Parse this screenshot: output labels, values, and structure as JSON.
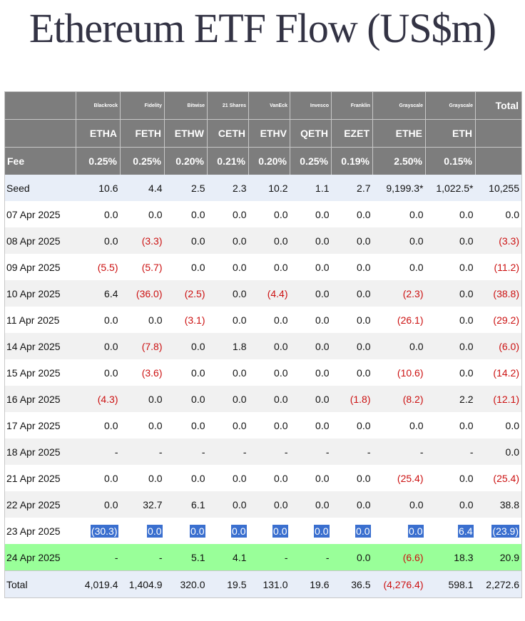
{
  "title": "Ethereum ETF Flow (US$m)",
  "header": {
    "issuers": [
      "Blackrock",
      "Fidelity",
      "Bitwise",
      "21 Shares",
      "VanEck",
      "Invesco",
      "Franklin",
      "Grayscale",
      "Grayscale"
    ],
    "total_label": "Total",
    "tickers": [
      "ETHA",
      "FETH",
      "ETHW",
      "CETH",
      "ETHV",
      "QETH",
      "EZET",
      "ETHE",
      "ETH"
    ],
    "fee_label": "Fee",
    "fees": [
      "0.25%",
      "0.25%",
      "0.20%",
      "0.21%",
      "0.20%",
      "0.25%",
      "0.19%",
      "2.50%",
      "0.15%"
    ]
  },
  "rows": [
    {
      "date": "Seed",
      "style": "seed",
      "values": [
        "10.6",
        "4.4",
        "2.5",
        "2.3",
        "10.2",
        "1.1",
        "2.7",
        "9,199.3*",
        "1,022.5*"
      ],
      "total": "10,255"
    },
    {
      "date": "07 Apr 2025",
      "style": "white",
      "values": [
        "0.0",
        "0.0",
        "0.0",
        "0.0",
        "0.0",
        "0.0",
        "0.0",
        "0.0",
        "0.0"
      ],
      "total": "0.0"
    },
    {
      "date": "08 Apr 2025",
      "style": "grey",
      "values": [
        "0.0",
        "(3.3)",
        "0.0",
        "0.0",
        "0.0",
        "0.0",
        "0.0",
        "0.0",
        "0.0"
      ],
      "total": "(3.3)"
    },
    {
      "date": "09 Apr 2025",
      "style": "white",
      "values": [
        "(5.5)",
        "(5.7)",
        "0.0",
        "0.0",
        "0.0",
        "0.0",
        "0.0",
        "0.0",
        "0.0"
      ],
      "total": "(11.2)"
    },
    {
      "date": "10 Apr 2025",
      "style": "grey",
      "values": [
        "6.4",
        "(36.0)",
        "(2.5)",
        "0.0",
        "(4.4)",
        "0.0",
        "0.0",
        "(2.3)",
        "0.0"
      ],
      "total": "(38.8)"
    },
    {
      "date": "11 Apr 2025",
      "style": "white",
      "values": [
        "0.0",
        "0.0",
        "(3.1)",
        "0.0",
        "0.0",
        "0.0",
        "0.0",
        "(26.1)",
        "0.0"
      ],
      "total": "(29.2)"
    },
    {
      "date": "14 Apr 2025",
      "style": "grey",
      "values": [
        "0.0",
        "(7.8)",
        "0.0",
        "1.8",
        "0.0",
        "0.0",
        "0.0",
        "0.0",
        "0.0"
      ],
      "total": "(6.0)"
    },
    {
      "date": "15 Apr 2025",
      "style": "white",
      "values": [
        "0.0",
        "(3.6)",
        "0.0",
        "0.0",
        "0.0",
        "0.0",
        "0.0",
        "(10.6)",
        "0.0"
      ],
      "total": "(14.2)"
    },
    {
      "date": "16 Apr 2025",
      "style": "grey",
      "values": [
        "(4.3)",
        "0.0",
        "0.0",
        "0.0",
        "0.0",
        "0.0",
        "(1.8)",
        "(8.2)",
        "2.2"
      ],
      "total": "(12.1)"
    },
    {
      "date": "17 Apr 2025",
      "style": "white",
      "values": [
        "0.0",
        "0.0",
        "0.0",
        "0.0",
        "0.0",
        "0.0",
        "0.0",
        "0.0",
        "0.0"
      ],
      "total": "0.0"
    },
    {
      "date": "18 Apr 2025",
      "style": "grey",
      "values": [
        "-",
        "-",
        "-",
        "-",
        "-",
        "-",
        "-",
        "-",
        "-"
      ],
      "total": "0.0"
    },
    {
      "date": "21 Apr 2025",
      "style": "white",
      "values": [
        "0.0",
        "0.0",
        "0.0",
        "0.0",
        "0.0",
        "0.0",
        "0.0",
        "(25.4)",
        "0.0"
      ],
      "total": "(25.4)"
    },
    {
      "date": "22 Apr 2025",
      "style": "grey",
      "values": [
        "0.0",
        "32.7",
        "6.1",
        "0.0",
        "0.0",
        "0.0",
        "0.0",
        "0.0",
        "0.0"
      ],
      "total": "38.8"
    },
    {
      "date": "23 Apr 2025",
      "style": "white",
      "selected": true,
      "values": [
        "(30.3)",
        "0.0",
        "0.0",
        "0.0",
        "0.0",
        "0.0",
        "0.0",
        "0.0",
        "6.4"
      ],
      "total": "(23.9)"
    },
    {
      "date": "24 Apr 2025",
      "style": "green",
      "values": [
        "-",
        "-",
        "5.1",
        "4.1",
        "-",
        "-",
        "0.0",
        "(6.6)",
        "18.3"
      ],
      "total": "20.9"
    },
    {
      "date": "Total",
      "style": "total",
      "values": [
        "4,019.4",
        "1,404.9",
        "320.0",
        "19.5",
        "131.0",
        "19.6",
        "36.5",
        "(4,276.4)",
        "598.1"
      ],
      "total": "2,272.6"
    }
  ],
  "colors": {
    "header_bg": "#7d7d7d",
    "negative": "#cc1111",
    "highlight_row": "#99ff99",
    "selection": "#3a6fcf",
    "title": "#333344"
  }
}
